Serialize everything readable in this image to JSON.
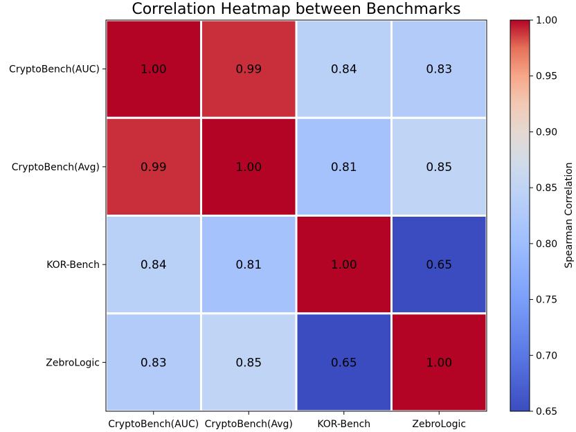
{
  "chart_data": {
    "type": "heatmap",
    "title": "Correlation Heatmap between Benchmarks",
    "rows": [
      "CryptoBench(AUC)",
      "CryptoBench(Avg)",
      "KOR-Bench",
      "ZebroLogic"
    ],
    "columns": [
      "CryptoBench(AUC)",
      "CryptoBench(Avg)",
      "KOR-Bench",
      "ZebroLogic"
    ],
    "values": [
      [
        1.0,
        0.99,
        0.84,
        0.83
      ],
      [
        0.99,
        1.0,
        0.81,
        0.85
      ],
      [
        0.84,
        0.81,
        1.0,
        0.65
      ],
      [
        0.83,
        0.85,
        0.65,
        1.0
      ]
    ],
    "value_format": "0.00",
    "colormap": "coolwarm",
    "colorbar": {
      "label": "Spearman Correlation",
      "min": 0.65,
      "max": 1.0,
      "ticks": [
        "0.65",
        "0.70",
        "0.75",
        "0.80",
        "0.85",
        "0.90",
        "0.95",
        "1.00"
      ]
    }
  }
}
